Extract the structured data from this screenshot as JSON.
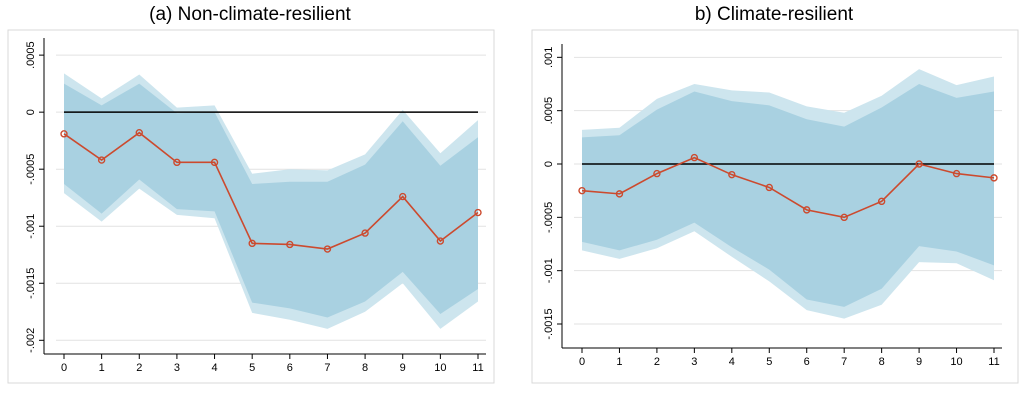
{
  "chart_data": [
    {
      "type": "line",
      "title": "(a) Non-climate-resilient",
      "xlabel": "",
      "ylabel": "",
      "x": [
        0,
        1,
        2,
        3,
        4,
        5,
        6,
        7,
        8,
        9,
        10,
        11
      ],
      "x_ticks": [
        "0",
        "1",
        "2",
        "3",
        "4",
        "5",
        "6",
        "7",
        "8",
        "9",
        "10",
        "11"
      ],
      "y_ticks": [
        {
          "value": 0.0005,
          "label": ".0005"
        },
        {
          "value": 0,
          "label": "0"
        },
        {
          "value": -0.0005,
          "label": "-.0005"
        },
        {
          "value": -0.001,
          "label": "-.001"
        },
        {
          "value": -0.0015,
          "label": "-.0015"
        },
        {
          "value": -0.002,
          "label": "-.002"
        }
      ],
      "ylim": [
        -0.00205,
        0.00058
      ],
      "reference_line": 0,
      "series": [
        {
          "values": [
            -0.00019,
            -0.00042,
            -0.00018,
            -0.00044,
            -0.00044,
            -0.00115,
            -0.00116,
            -0.0012,
            -0.00106,
            -0.00074,
            -0.00113,
            -0.00088
          ]
        }
      ],
      "bands": [
        {
          "level": "outer",
          "upper": [
            0.00034,
            0.00012,
            0.00033,
            4e-05,
            6e-05,
            -0.00054,
            -0.0005,
            -0.00051,
            -0.00037,
            2e-05,
            -0.00036,
            -7e-05
          ],
          "lower": [
            -0.00071,
            -0.00096,
            -0.00067,
            -0.0009,
            -0.00093,
            -0.00176,
            -0.00182,
            -0.0019,
            -0.00175,
            -0.0015,
            -0.0019,
            -0.00166
          ]
        },
        {
          "level": "inner",
          "upper": [
            0.00025,
            6e-05,
            0.00025,
            -1e-05,
            0.0,
            -0.00063,
            -0.00061,
            -0.00061,
            -0.00046,
            -8e-05,
            -0.00047,
            -0.00022
          ],
          "lower": [
            -0.00063,
            -0.00089,
            -0.00059,
            -0.00085,
            -0.00087,
            -0.00167,
            -0.00172,
            -0.0018,
            -0.00166,
            -0.0014,
            -0.00177,
            -0.00155
          ]
        }
      ],
      "colors": {
        "line": "#cc4a2e",
        "band_outer": "#cde5ee",
        "band_inner": "#a9d1e1",
        "zero_line": "#000000",
        "grid": "#e2e2e2"
      },
      "grid": true,
      "legend": "none"
    },
    {
      "type": "line",
      "title": "b) Climate-resilient",
      "xlabel": "",
      "ylabel": "",
      "x": [
        0,
        1,
        2,
        3,
        4,
        5,
        6,
        7,
        8,
        9,
        10,
        11
      ],
      "x_ticks": [
        "0",
        "1",
        "2",
        "3",
        "4",
        "5",
        "6",
        "7",
        "8",
        "9",
        "10",
        "11"
      ],
      "y_ticks": [
        {
          "value": 0.001,
          "label": ".001"
        },
        {
          "value": 0.0005,
          "label": ".0005"
        },
        {
          "value": 0,
          "label": "0"
        },
        {
          "value": -0.0005,
          "label": "-.0005"
        },
        {
          "value": -0.001,
          "label": "-.001"
        },
        {
          "value": -0.0015,
          "label": "-.0015"
        }
      ],
      "ylim": [
        -0.00165,
        0.00105
      ],
      "reference_line": 0,
      "series": [
        {
          "values": [
            -0.00025,
            -0.00028,
            -9e-05,
            6e-05,
            -0.0001,
            -0.00022,
            -0.00043,
            -0.0005,
            -0.00035,
            0.0,
            -9e-05,
            -0.00013
          ]
        }
      ],
      "bands": [
        {
          "level": "outer",
          "upper": [
            0.00032,
            0.00034,
            0.00061,
            0.00075,
            0.00069,
            0.00067,
            0.00054,
            0.00048,
            0.00064,
            0.00089,
            0.00074,
            0.00082
          ],
          "lower": [
            -0.00081,
            -0.00089,
            -0.00079,
            -0.00063,
            -0.00087,
            -0.0011,
            -0.00137,
            -0.00145,
            -0.00132,
            -0.00092,
            -0.00093,
            -0.00109
          ]
        },
        {
          "level": "inner",
          "upper": [
            0.00025,
            0.00027,
            0.00051,
            0.00068,
            0.00059,
            0.00055,
            0.00042,
            0.00035,
            0.00053,
            0.00075,
            0.00062,
            0.00068
          ],
          "lower": [
            -0.00073,
            -0.00081,
            -0.00071,
            -0.00055,
            -0.00078,
            -0.00099,
            -0.00127,
            -0.00134,
            -0.00117,
            -0.00077,
            -0.00082,
            -0.00095
          ]
        }
      ],
      "colors": {
        "line": "#cc4a2e",
        "band_outer": "#cde5ee",
        "band_inner": "#a9d1e1",
        "zero_line": "#000000",
        "grid": "#e2e2e2"
      },
      "grid": true,
      "legend": "none"
    }
  ]
}
